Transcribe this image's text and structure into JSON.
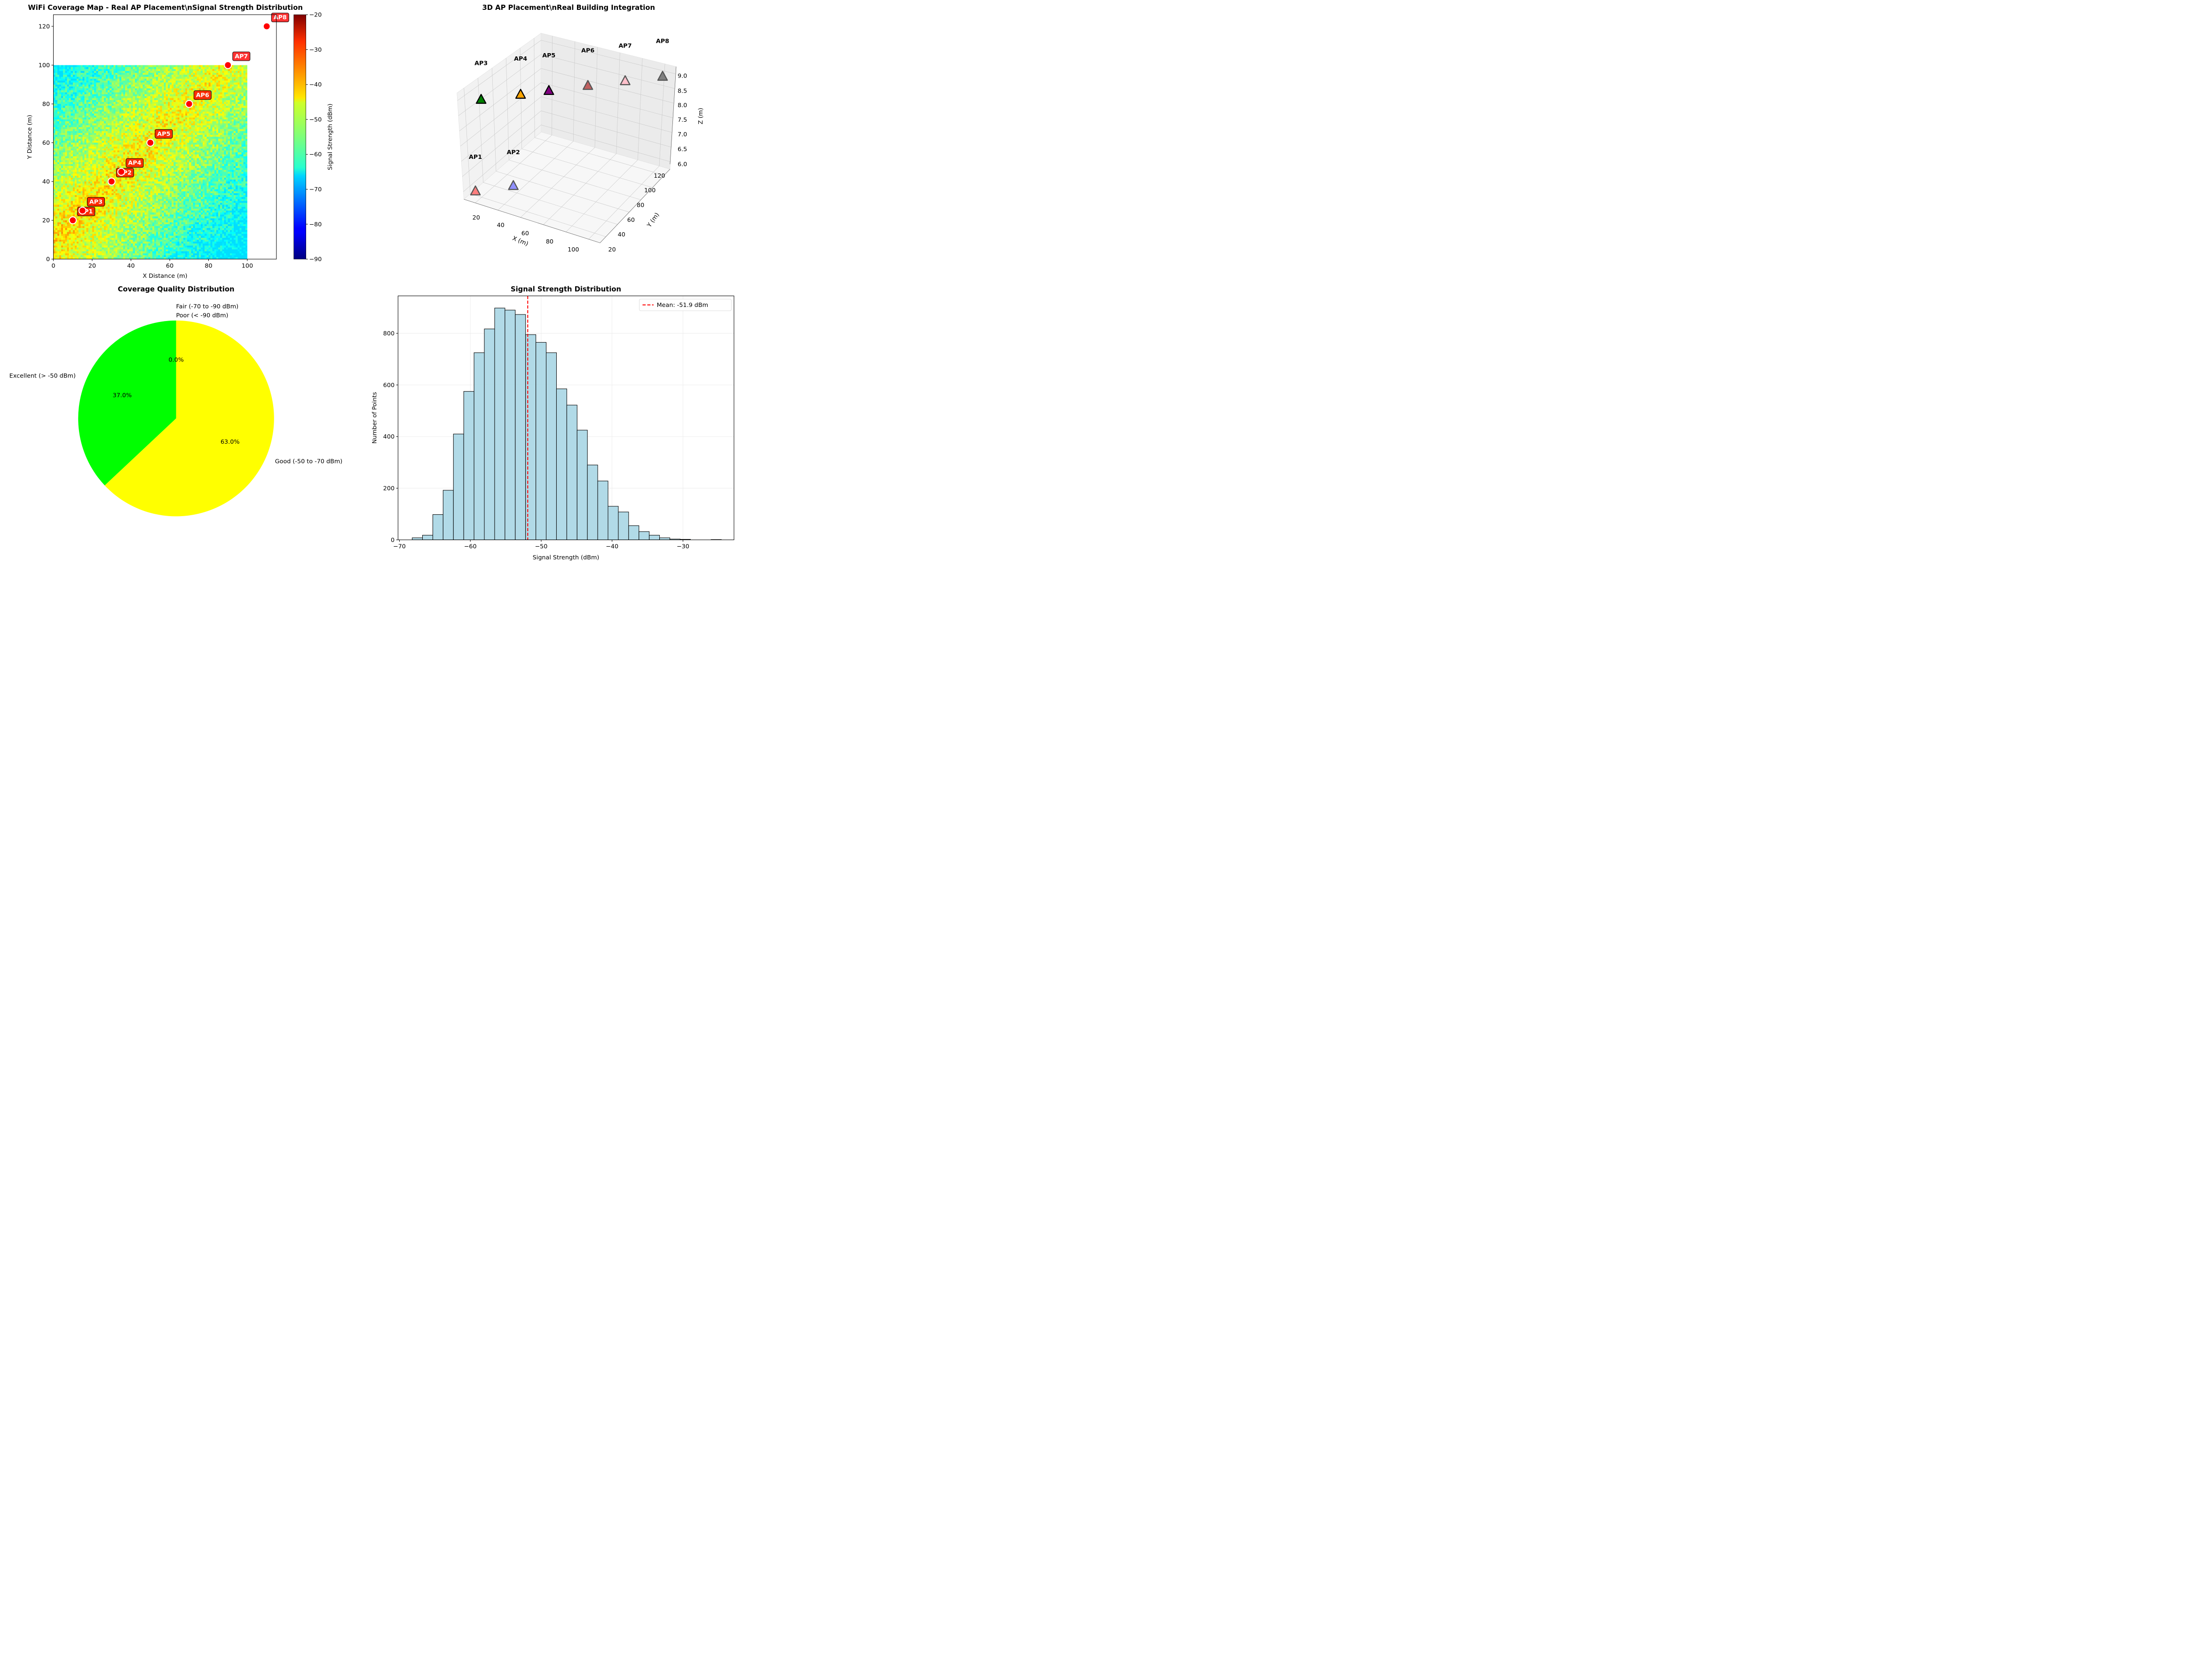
{
  "chart_data": [
    {
      "type": "heatmap",
      "title": "WiFi Coverage Map - Real AP Placement\\nSignal Strength Distribution",
      "xlabel": "X Distance (m)",
      "ylabel": "Y Distance (m)",
      "xlim": [
        0,
        115
      ],
      "ylim": [
        0,
        126
      ],
      "heatmap_extent": {
        "x": [
          0,
          100
        ],
        "y": [
          0,
          100
        ]
      },
      "xticks": [
        0,
        20,
        40,
        60,
        80,
        100
      ],
      "yticks": [
        0,
        20,
        40,
        60,
        80,
        100,
        120
      ],
      "colorbar": {
        "label": "Signal Strength (dBm)",
        "range": [
          -90,
          -20
        ],
        "ticks": [
          -90,
          -80,
          -70,
          -60,
          -50,
          -40,
          -30,
          -20
        ],
        "colormap": "jet"
      },
      "access_points": [
        {
          "name": "AP1",
          "x": 10,
          "y": 20
        },
        {
          "name": "AP2",
          "x": 30,
          "y": 40
        },
        {
          "name": "AP3",
          "x": 15,
          "y": 25
        },
        {
          "name": "AP4",
          "x": 35,
          "y": 45
        },
        {
          "name": "AP5",
          "x": 50,
          "y": 60
        },
        {
          "name": "AP6",
          "x": 70,
          "y": 80
        },
        {
          "name": "AP7",
          "x": 90,
          "y": 100
        },
        {
          "name": "AP8",
          "x": 110,
          "y": 120
        }
      ],
      "ap_marker_color": "#ff0000",
      "label_box_color": "#ff0000"
    },
    {
      "type": "scatter",
      "title": "3D AP Placement\\nReal Building Integration",
      "xlabel": "X (m)",
      "ylabel": "Y (m)",
      "zlabel": "Z (m)",
      "xticks": [
        20,
        40,
        60,
        80,
        100
      ],
      "yticks": [
        20,
        40,
        60,
        80,
        100,
        120
      ],
      "zticks": [
        6.0,
        6.5,
        7.0,
        7.5,
        8.0,
        8.5,
        9.0
      ],
      "points": [
        {
          "name": "AP1",
          "x": 10,
          "y": 20,
          "z": 6,
          "color": "#ff7f7f"
        },
        {
          "name": "AP2",
          "x": 30,
          "y": 40,
          "z": 6,
          "color": "#8f8fff"
        },
        {
          "name": "AP3",
          "x": 15,
          "y": 25,
          "z": 9,
          "color": "#008000"
        },
        {
          "name": "AP4",
          "x": 35,
          "y": 45,
          "z": 9,
          "color": "#ffa500"
        },
        {
          "name": "AP5",
          "x": 50,
          "y": 60,
          "z": 9,
          "color": "#800080"
        },
        {
          "name": "AP6",
          "x": 70,
          "y": 80,
          "z": 9,
          "color": "#c06060"
        },
        {
          "name": "AP7",
          "x": 90,
          "y": 100,
          "z": 9,
          "color": "#ffc0cb"
        },
        {
          "name": "AP8",
          "x": 110,
          "y": 120,
          "z": 9,
          "color": "#808080"
        }
      ]
    },
    {
      "type": "pie",
      "title": "Coverage Quality Distribution",
      "slices": [
        {
          "label": "Excellent (> -50 dBm)",
          "value": 37.0,
          "pct_label": "37.0%",
          "color": "#00ff00"
        },
        {
          "label": "Good (-50 to -70 dBm)",
          "value": 63.0,
          "pct_label": "63.0%",
          "color": "#ffff00"
        },
        {
          "label": "Fair (-70 to -90 dBm)",
          "value": 0.0,
          "pct_label": "0.0%",
          "color": "#ffa500"
        },
        {
          "label": "Poor (< -90 dBm)",
          "value": 0.0,
          "pct_label": "0.0%",
          "color": "#ff0000"
        }
      ]
    },
    {
      "type": "bar",
      "title": "Signal Strength Distribution",
      "xlabel": "Signal Strength (dBm)",
      "ylabel": "Number of Points",
      "xlim": [
        -70.2,
        -22.8
      ],
      "ylim": [
        0,
        945
      ],
      "xticks": [
        -70,
        -60,
        -50,
        -40,
        -30
      ],
      "yticks": [
        0,
        200,
        400,
        600,
        800
      ],
      "bin_start": -68.2,
      "bin_width": 1.454,
      "counts": [
        8,
        18,
        98,
        192,
        410,
        575,
        725,
        817,
        898,
        890,
        873,
        795,
        765,
        725,
        585,
        522,
        425,
        290,
        228,
        130,
        108,
        55,
        32,
        18,
        8,
        3,
        2,
        0,
        0,
        1
      ],
      "bar_color": "#add8e6",
      "mean": -51.9,
      "mean_line_color": "#ff0000",
      "legend": {
        "label": "Mean: -51.9 dBm",
        "position": "top-right"
      },
      "grid": true
    }
  ]
}
